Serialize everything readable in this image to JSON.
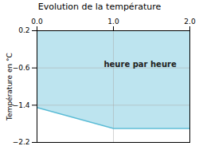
{
  "chart_data": {
    "type": "area",
    "title": "Evolution de la température",
    "ylabel": "Température en °C",
    "x": [
      0,
      1,
      2
    ],
    "values": [
      -1.45,
      -1.9,
      -1.9
    ],
    "y_top": 0.2,
    "color": "#5bbcd6",
    "xlim": [
      0,
      2
    ],
    "xticks": [
      0,
      1,
      2
    ],
    "ylim": [
      -2.2,
      0.2
    ],
    "yticks": [
      0.2,
      -0.6,
      -1.4,
      -2.2
    ],
    "grid": true,
    "annotation": {
      "text": "heure par heure",
      "x": 1.35,
      "y": -0.52
    }
  }
}
